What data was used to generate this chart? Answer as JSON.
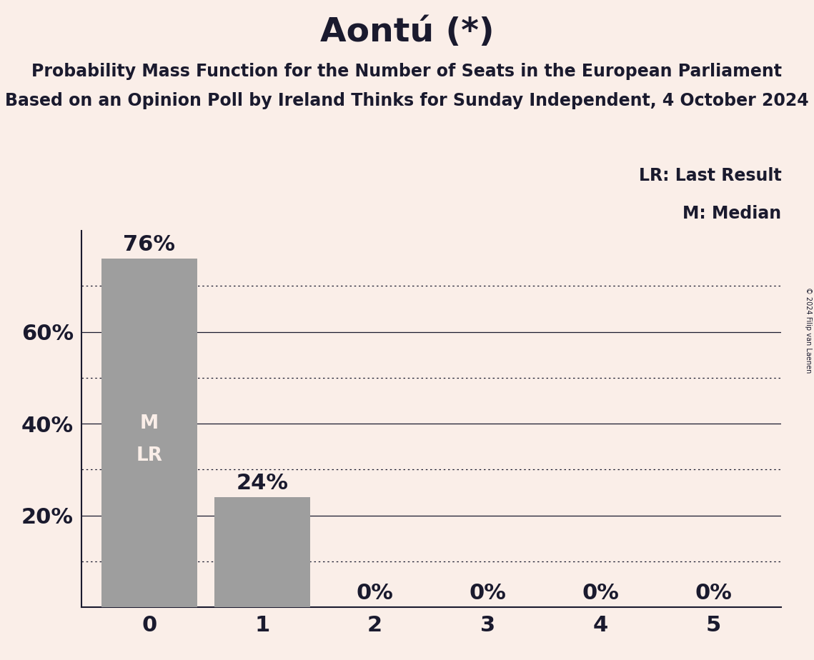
{
  "title": "Aontú (*)",
  "subtitle1": "Probability Mass Function for the Number of Seats in the European Parliament",
  "subtitle2": "Based on an Opinion Poll by Ireland Thinks for Sunday Independent, 4 October 2024",
  "copyright": "© 2024 Filip van Laenen",
  "categories": [
    0,
    1,
    2,
    3,
    4,
    5
  ],
  "values": [
    0.76,
    0.24,
    0.0,
    0.0,
    0.0,
    0.0
  ],
  "bar_color": "#9e9e9e",
  "bar_labels": [
    "76%",
    "24%",
    "0%",
    "0%",
    "0%",
    "0%"
  ],
  "median_bar": 0,
  "last_result_bar": 0,
  "median_label": "M",
  "last_result_label": "LR",
  "legend_lr": "LR: Last Result",
  "legend_m": "M: Median",
  "background_color": "#faeee8",
  "text_color": "#1a1a2e",
  "bar_text_color": "#faeee8",
  "ylim": [
    0,
    0.82
  ],
  "title_fontsize": 34,
  "subtitle_fontsize": 17,
  "tick_fontsize": 22,
  "bar_label_fontsize": 22,
  "bar_ml_fontsize": 19,
  "legend_fontsize": 17,
  "copyright_fontsize": 7,
  "grid_dotted_levels": [
    0.1,
    0.3,
    0.5,
    0.7
  ],
  "grid_solid_levels": [
    0.2,
    0.4,
    0.6
  ],
  "ytick_positions": [
    0.2,
    0.4,
    0.6
  ],
  "ytick_labels": [
    "20%",
    "40%",
    "60%"
  ]
}
